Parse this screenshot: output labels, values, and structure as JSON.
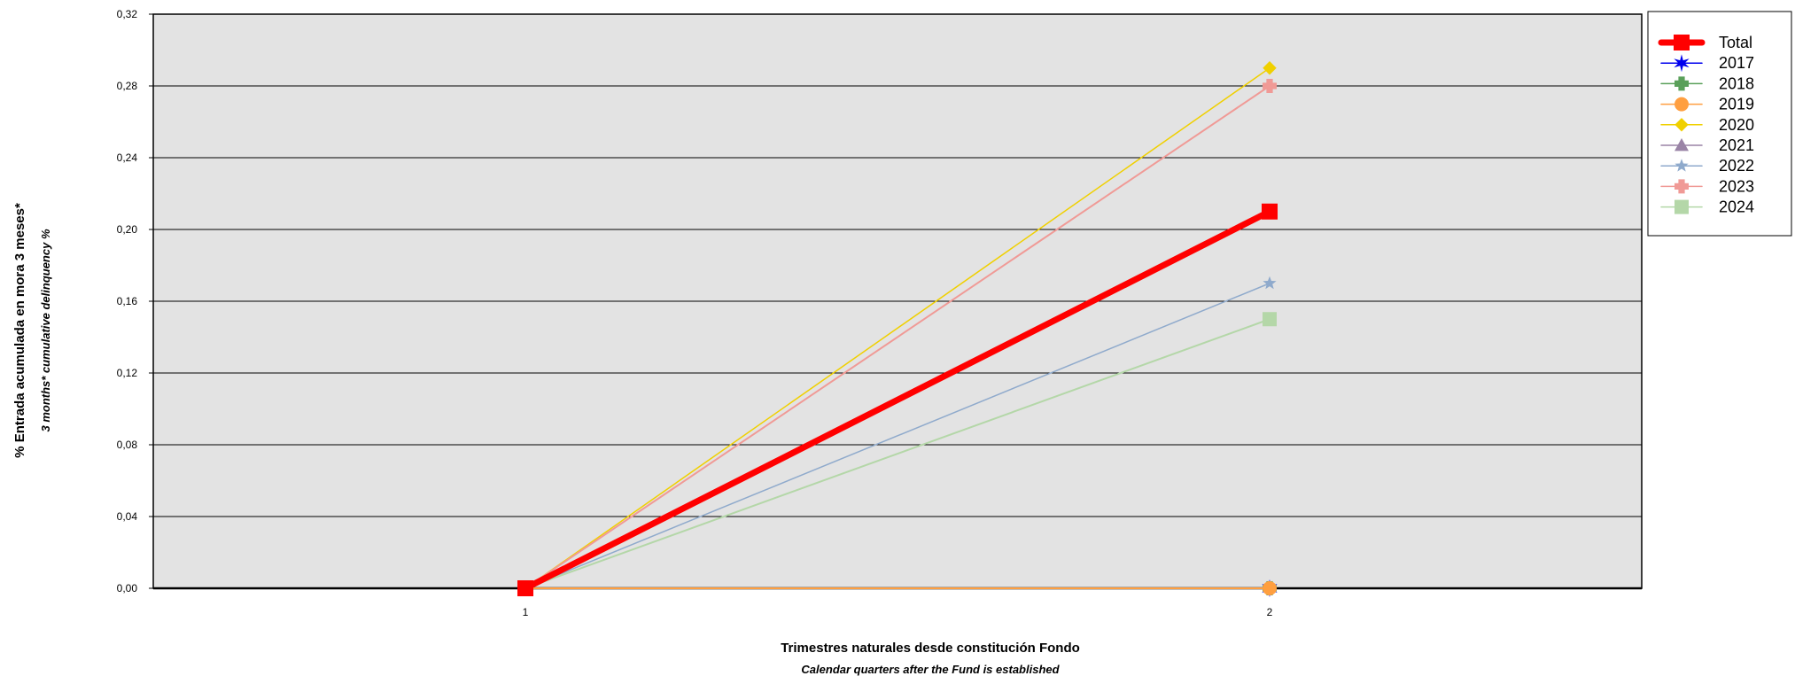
{
  "chart_data": {
    "type": "line",
    "ylabel": "% Entrada acumulada en mora 3 meses*",
    "ylabel_sub": "3 months* cumulative delinquency %",
    "xlabel": "Trimestres naturales desde constitución Fondo",
    "xlabel_sub": "Calendar quarters after the Fund is established",
    "x": [
      1,
      2
    ],
    "x_tick_labels": [
      "1",
      "2"
    ],
    "ylim": [
      0,
      0.32
    ],
    "y_ticks": [
      0,
      0.04,
      0.08,
      0.12,
      0.16,
      0.2,
      0.24,
      0.28,
      0.32
    ],
    "y_tick_labels": [
      "0,00",
      "0,04",
      "0,08",
      "0,12",
      "0,16",
      "0,20",
      "0,24",
      "0,28",
      "0,32"
    ],
    "grid": true,
    "legend_position": "right",
    "series": [
      {
        "name": "2017",
        "values": [
          null,
          0.0
        ],
        "color": "#0000ee",
        "marker": "star6",
        "width": 1.5
      },
      {
        "name": "2018",
        "values": [
          null,
          0.0
        ],
        "color": "#5aa05a",
        "marker": "cross",
        "width": 1.5
      },
      {
        "name": "2019",
        "values": [
          0.0,
          0.0
        ],
        "color": "#ff9f40",
        "marker": "circle",
        "width": 2
      },
      {
        "name": "2020",
        "values": [
          0.0,
          0.29
        ],
        "color": "#f0d000",
        "marker": "diamond",
        "width": 1.5
      },
      {
        "name": "2021",
        "values": [
          null,
          null
        ],
        "color": "#9a84a6",
        "marker": "triangle",
        "width": 1.5
      },
      {
        "name": "2022",
        "values": [
          0.0,
          0.17
        ],
        "color": "#8faacc",
        "marker": "star",
        "width": 1.5
      },
      {
        "name": "2023",
        "values": [
          0.0,
          0.28
        ],
        "color": "#f09a96",
        "marker": "cross",
        "width": 2
      },
      {
        "name": "2024",
        "values": [
          0.0,
          0.15
        ],
        "color": "#b4d7a8",
        "marker": "square",
        "width": 2
      },
      {
        "name": "Total",
        "values": [
          0.0,
          0.21
        ],
        "color": "#ff0000",
        "marker": "square",
        "width": 7
      }
    ],
    "legend_order": [
      "Total",
      "2017",
      "2018",
      "2019",
      "2020",
      "2021",
      "2022",
      "2023",
      "2024"
    ]
  }
}
